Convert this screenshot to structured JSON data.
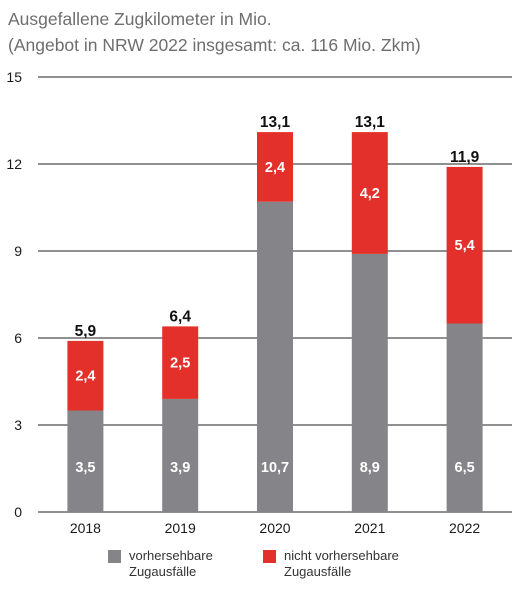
{
  "title_line1": "Ausgefallene Zugkilometer in Mio.",
  "title_line2": "(Angebot in NRW 2022 insgesamt: ca. 116 Mio. Zkm)",
  "colors": {
    "predictable": "#858488",
    "unpredictable": "#e3302a",
    "grid": "#222222"
  },
  "legend": {
    "predictable": [
      "vorhersehbare",
      "Zugausfälle"
    ],
    "unpredictable": [
      "nicht vorhersehbare",
      "Zugausfälle"
    ]
  },
  "chart_data": {
    "type": "bar",
    "stacked": true,
    "categories": [
      "2018",
      "2019",
      "2020",
      "2021",
      "2022"
    ],
    "series": [
      {
        "name": "vorhersehbare Zugausfälle",
        "values": [
          3.5,
          3.9,
          10.7,
          8.9,
          6.5
        ],
        "labels": [
          "3,5",
          "3,9",
          "10,7",
          "8,9",
          "6,5"
        ]
      },
      {
        "name": "nicht vorhersehbare Zugausfälle",
        "values": [
          2.4,
          2.5,
          2.4,
          4.2,
          5.4
        ],
        "labels": [
          "2,4",
          "2,5",
          "2,4",
          "4,2",
          "5,4"
        ]
      }
    ],
    "totals": [
      5.9,
      6.4,
      13.1,
      13.1,
      11.9
    ],
    "total_labels": [
      "5,9",
      "6,4",
      "13,1",
      "13,1",
      "11,9"
    ],
    "yticks": [
      0,
      3,
      6,
      9,
      12,
      15
    ],
    "ylim": [
      0,
      15
    ],
    "grid": true,
    "legend_position": "bottom"
  }
}
